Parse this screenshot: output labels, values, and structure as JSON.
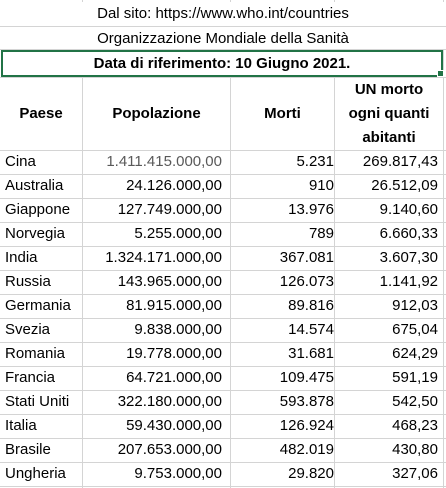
{
  "banners": {
    "source": "Dal sito: https://www.who.int/countries",
    "org": "Organizzazione Mondiale della Sanità",
    "date": "Data di riferimento: 10 Giugno 2021."
  },
  "headers": {
    "country": "Paese",
    "population": "Popolazione",
    "deaths": "Morti",
    "ratio_line1": "UN morto",
    "ratio_line2": "ogni quanti",
    "ratio_line3": "abitanti"
  },
  "rows": [
    {
      "country": "Cina",
      "population": "1.411.415.000,00",
      "deaths": "5.231",
      "ratio": "269.817,43"
    },
    {
      "country": "Australia",
      "population": "24.126.000,00",
      "deaths": "910",
      "ratio": "26.512,09"
    },
    {
      "country": "Giappone",
      "population": "127.749.000,00",
      "deaths": "13.976",
      "ratio": "9.140,60"
    },
    {
      "country": "Norvegia",
      "population": "5.255.000,00",
      "deaths": "789",
      "ratio": "6.660,33"
    },
    {
      "country": "India",
      "population": "1.324.171.000,00",
      "deaths": "367.081",
      "ratio": "3.607,30"
    },
    {
      "country": "Russia",
      "population": "143.965.000,00",
      "deaths": "126.073",
      "ratio": "1.141,92"
    },
    {
      "country": "Germania",
      "population": "81.915.000,00",
      "deaths": "89.816",
      "ratio": "912,03"
    },
    {
      "country": "Svezia",
      "population": "9.838.000,00",
      "deaths": "14.574",
      "ratio": "675,04"
    },
    {
      "country": "Romania",
      "population": "19.778.000,00",
      "deaths": "31.681",
      "ratio": "624,29"
    },
    {
      "country": "Francia",
      "population": "64.721.000,00",
      "deaths": "109.475",
      "ratio": "591,19"
    },
    {
      "country": "Stati Uniti",
      "population": "322.180.000,00",
      "deaths": "593.878",
      "ratio": "542,50"
    },
    {
      "country": "Italia",
      "population": "59.430.000,00",
      "deaths": "126.924",
      "ratio": "468,23"
    },
    {
      "country": "Brasile",
      "population": "207.653.000,00",
      "deaths": "482.019",
      "ratio": "430,80"
    },
    {
      "country": "Ungheria",
      "population": "9.753.000,00",
      "deaths": "29.820",
      "ratio": "327,06"
    }
  ],
  "colors": {
    "selection_border": "#217346",
    "gridline": "#d4d4d4",
    "first_population_text": "#595959"
  }
}
